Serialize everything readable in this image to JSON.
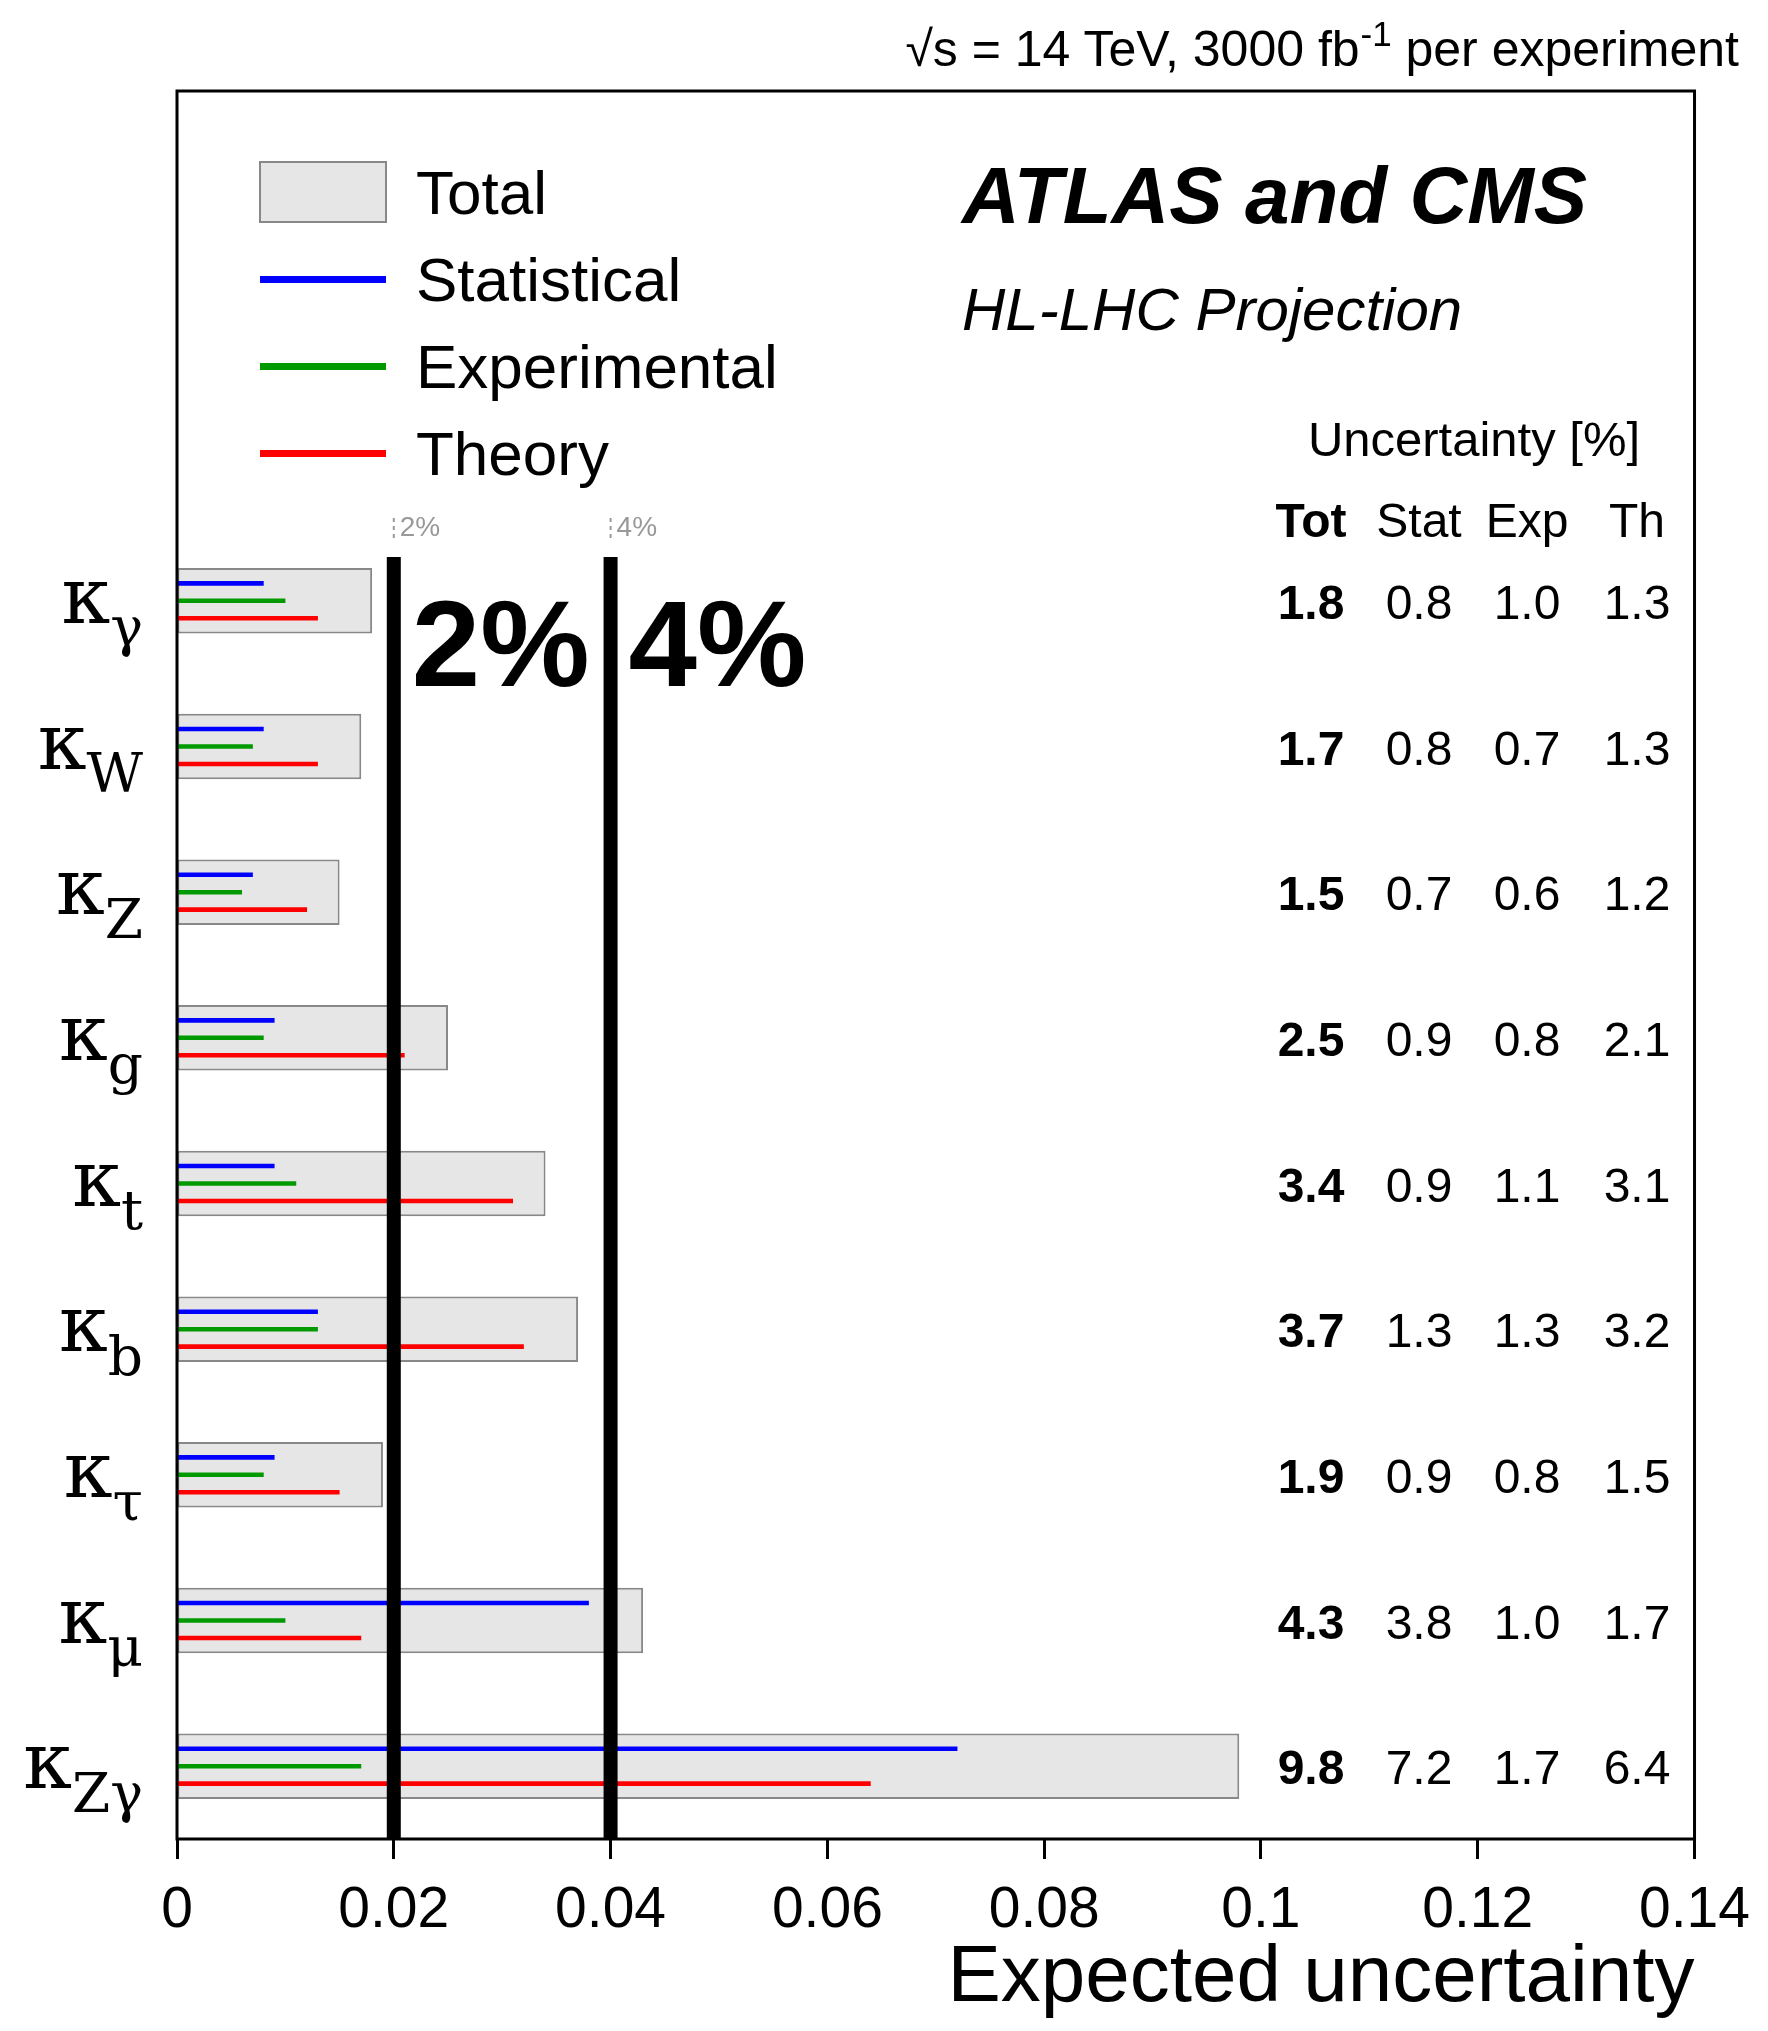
{
  "chart_data": {
    "type": "bar",
    "orientation": "horizontal",
    "title": "ATLAS and CMS",
    "subtitle": "HL-LHC Projection",
    "xlabel": "Expected uncertainty",
    "categories": [
      "κ$_{γ}$",
      "κ$_{W}$",
      "κ$_{Z}$",
      "κ$_{g}$",
      "κ$_{t}$",
      "κ$_{b}$",
      "κ$_{τ}$",
      "κ$_{μ}$",
      "κ$_{Zγ}$"
    ],
    "series": [
      {
        "name": "Total",
        "color": "#e6e6e6",
        "values": [
          0.018,
          0.017,
          0.015,
          0.025,
          0.034,
          0.037,
          0.019,
          0.043,
          0.098
        ]
      },
      {
        "name": "Statistical",
        "color": "#0000ff",
        "values": [
          0.008,
          0.008,
          0.007,
          0.009,
          0.009,
          0.013,
          0.009,
          0.038,
          0.072
        ]
      },
      {
        "name": "Experimental",
        "color": "#009900",
        "values": [
          0.01,
          0.007,
          0.006,
          0.008,
          0.011,
          0.013,
          0.008,
          0.01,
          0.017
        ]
      },
      {
        "name": "Theory",
        "color": "#ff0000",
        "values": [
          0.013,
          0.013,
          0.012,
          0.021,
          0.031,
          0.032,
          0.015,
          0.017,
          0.064
        ]
      }
    ],
    "xlim": [
      0,
      0.14
    ],
    "xticks": [
      0,
      0.02,
      0.04,
      0.06,
      0.08,
      0.1,
      0.12,
      0.14
    ],
    "grid": false,
    "legend": "top left",
    "ref_lines": [
      {
        "axis": "x",
        "value": 0.02,
        "label": "2%",
        "color": "#000000"
      },
      {
        "axis": "x",
        "value": 0.04,
        "label": "4%",
        "color": "#000000"
      }
    ],
    "annotations": [
      "√s = 14 TeV, 3000 fb$^{-1}$ per experiment",
      "2%",
      "4%",
      "Uncertainty [%]",
      "Tot",
      "Stat",
      "Exp",
      "Th",
      "1.8",
      "0.8",
      "1.0",
      "1.3",
      "1.7",
      "0.8",
      "0.7",
      "1.3",
      "1.5",
      "0.7",
      "0.6",
      "1.2",
      "2.5",
      "0.9",
      "0.8",
      "2.1",
      "3.4",
      "0.9",
      "1.1",
      "3.1",
      "3.7",
      "1.3",
      "1.3",
      "3.2",
      "1.9",
      "0.9",
      "0.8",
      "1.5",
      "4.3",
      "3.8",
      "1.0",
      "1.7",
      "9.8",
      "7.2",
      "1.7",
      "6.4"
    ]
  }
}
